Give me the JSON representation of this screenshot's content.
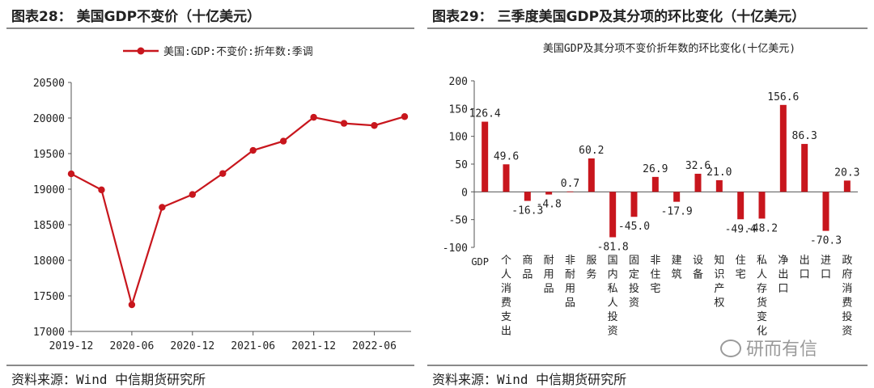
{
  "left": {
    "panel_title": "图表28： 美国GDP不变价（十亿美元）",
    "source": "资料来源：Wind 中信期货研究所",
    "chart_data": {
      "type": "line",
      "title": "",
      "legend": "美国:GDP:不变价:折年数:季调",
      "series": [
        {
          "name": "美国:GDP:不变价:折年数:季调",
          "color": "#c8161d",
          "values": [
            19215,
            18990,
            17375,
            18745,
            18925,
            19220,
            19545,
            19675,
            20010,
            19925,
            19895,
            20020
          ]
        }
      ],
      "x_index": [
        0,
        1,
        2,
        3,
        4,
        5,
        6,
        7,
        8,
        9,
        10,
        11
      ],
      "x_ticks": [
        {
          "label": "2019-12",
          "at": 0
        },
        {
          "label": "2020-06",
          "at": 2
        },
        {
          "label": "2020-12",
          "at": 4
        },
        {
          "label": "2021-06",
          "at": 6
        },
        {
          "label": "2021-12",
          "at": 8
        },
        {
          "label": "2022-06",
          "at": 10
        }
      ],
      "ylim": [
        17000,
        20500
      ],
      "y_ticks": [
        "17000",
        "17500",
        "18000",
        "18500",
        "19000",
        "19500",
        "20000",
        "20500"
      ]
    }
  },
  "right": {
    "panel_title": "图表29： 三季度美国GDP及其分项的环比变化（十亿美元）",
    "source": "资料来源：Wind 中信期货研究所",
    "chart_data": {
      "type": "bar",
      "title": "美国GDP及其分项不变价折年数的环比变化(十亿美元)",
      "color": "#c8161d",
      "categories": [
        "GDP",
        "个人消费支出",
        "商品",
        "耐用品",
        "非耐用品",
        "服务",
        "国内私人投资",
        "固定投资",
        "非住宅",
        "建筑",
        "设备",
        "知识产权",
        "住宅",
        "私人存货变化",
        "净出口",
        "出口",
        "进口",
        "政府消费投资"
      ],
      "values": [
        126.4,
        49.6,
        -16.3,
        -4.8,
        0.7,
        60.2,
        -81.8,
        -45.0,
        26.9,
        -17.9,
        32.6,
        21.0,
        -49.4,
        -48.2,
        156.6,
        86.3,
        -70.3,
        20.3
      ],
      "value_labels": [
        "126.4",
        "49.6",
        "-16.3",
        "-4.8",
        "0.7",
        "60.2",
        "-81.8",
        "-45.0",
        "26.9",
        "-17.9",
        "32.6",
        "21.0",
        "-49.4",
        "-48.2",
        "156.6",
        "86.3",
        "-70.3",
        "20.3"
      ],
      "ylim": [
        -100,
        200
      ],
      "y_ticks": [
        "-100",
        "-50",
        "0",
        "50",
        "100",
        "150",
        "200"
      ]
    }
  },
  "watermark": "研而有信"
}
